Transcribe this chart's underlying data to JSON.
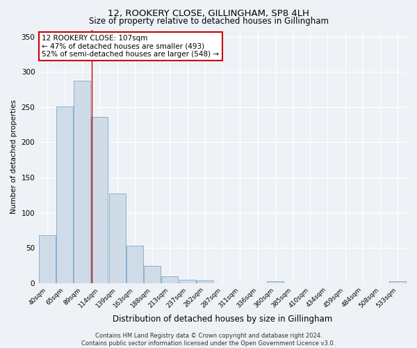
{
  "title1": "12, ROOKERY CLOSE, GILLINGHAM, SP8 4LH",
  "title2": "Size of property relative to detached houses in Gillingham",
  "xlabel": "Distribution of detached houses by size in Gillingham",
  "ylabel": "Number of detached properties",
  "bar_labels": [
    "40sqm",
    "65sqm",
    "89sqm",
    "114sqm",
    "139sqm",
    "163sqm",
    "188sqm",
    "213sqm",
    "237sqm",
    "262sqm",
    "287sqm",
    "311sqm",
    "336sqm",
    "360sqm",
    "385sqm",
    "410sqm",
    "434sqm",
    "459sqm",
    "484sqm",
    "508sqm",
    "533sqm"
  ],
  "bar_values": [
    68,
    251,
    287,
    236,
    127,
    53,
    24,
    10,
    5,
    4,
    0,
    0,
    0,
    3,
    0,
    0,
    0,
    0,
    0,
    0,
    3
  ],
  "bar_color": "#cfdce8",
  "bar_edgecolor": "#8ab0cc",
  "ylim": [
    0,
    360
  ],
  "yticks": [
    0,
    50,
    100,
    150,
    200,
    250,
    300,
    350
  ],
  "annotation_line1": "12 ROOKERY CLOSE: 107sqm",
  "annotation_line2": "← 47% of detached houses are smaller (493)",
  "annotation_line3": "52% of semi-detached houses are larger (548) →",
  "vline_x": 2.55,
  "vline_color": "#cc0000",
  "background_color": "#eef2f7",
  "grid_color": "#ffffff",
  "footnote": "Contains HM Land Registry data © Crown copyright and database right 2024.\nContains public sector information licensed under the Open Government Licence v3.0."
}
